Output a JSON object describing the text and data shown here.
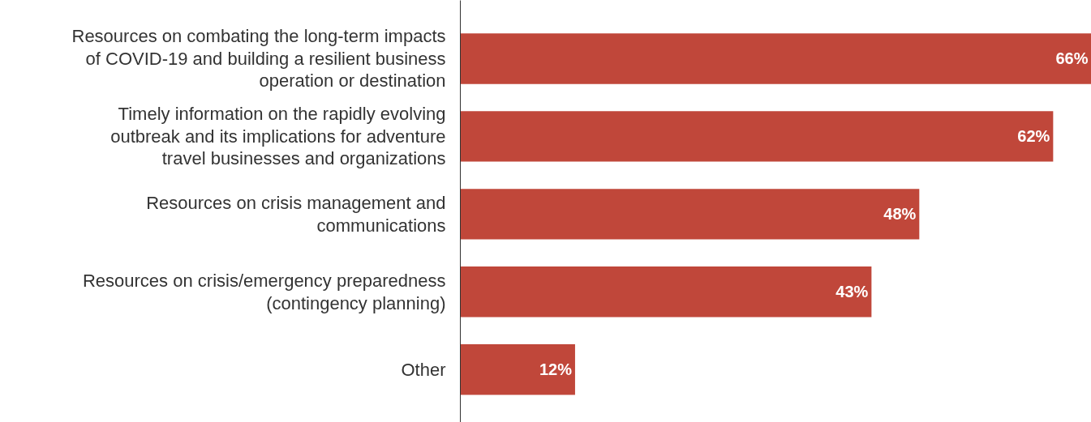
{
  "chart_data": {
    "type": "bar",
    "orientation": "horizontal",
    "categories": [
      "Resources on combating the long-term impacts of COVID-19 and building a resilient business operation or destination",
      "Timely information on the rapidly evolving outbreak and its implications for adventure travel businesses and organizations",
      "Resources on crisis management and communications",
      "Resources on crisis/emergency preparedness (contingency planning)",
      "Other"
    ],
    "values": [
      66,
      62,
      48,
      43,
      12
    ],
    "value_labels": [
      "66%",
      "62%",
      "48%",
      "43%",
      "12%"
    ],
    "color": "#c0473a",
    "xlim": [
      0,
      66
    ],
    "tick_labels": "y"
  }
}
